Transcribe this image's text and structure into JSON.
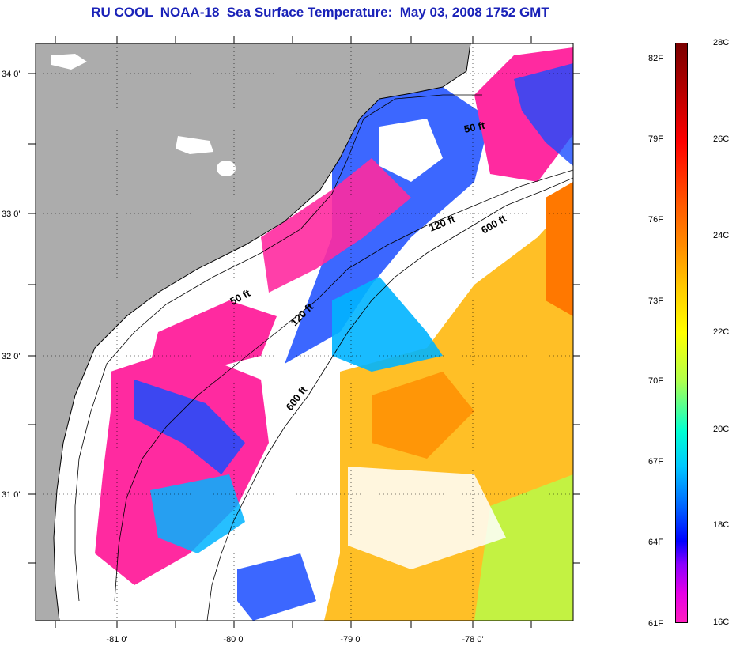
{
  "title": "RU COOL  NOAA-18  Sea Surface Temperature:  May 03, 2008 1752 GMT",
  "map": {
    "lat_ticks": [
      {
        "value": 34,
        "label": "34 0'"
      },
      {
        "value": 33,
        "label": "33 0'"
      },
      {
        "value": 32,
        "label": "32 0'"
      },
      {
        "value": 31,
        "label": "31 0'"
      }
    ],
    "lon_ticks": [
      {
        "value": -81,
        "label": "-81 0'"
      },
      {
        "value": -80,
        "label": "-80 0'"
      },
      {
        "value": -79,
        "label": "-79 0'"
      },
      {
        "value": -78,
        "label": "-78 0'"
      }
    ],
    "contour_labels": {
      "c50_north": "50 ft",
      "c50_south": "50 ft",
      "c120_north": "120 ft",
      "c120_south": "120 ft",
      "c600_north": "600 ft",
      "c600_south": "600 ft"
    },
    "colors": {
      "land": "#acacac",
      "cloud": "#ffffff",
      "cold": "#ff2aa0",
      "cool": "#1a4cff",
      "mid": "#00b4ff",
      "warm": "#ffb400",
      "hot": "#ff7800"
    }
  },
  "colorbar": {
    "fahrenheit": [
      "82F",
      "79F",
      "76F",
      "73F",
      "70F",
      "67F",
      "64F",
      "61F"
    ],
    "celsius": [
      "28C",
      "26C",
      "24C",
      "22C",
      "20C",
      "18C",
      "16C"
    ]
  }
}
